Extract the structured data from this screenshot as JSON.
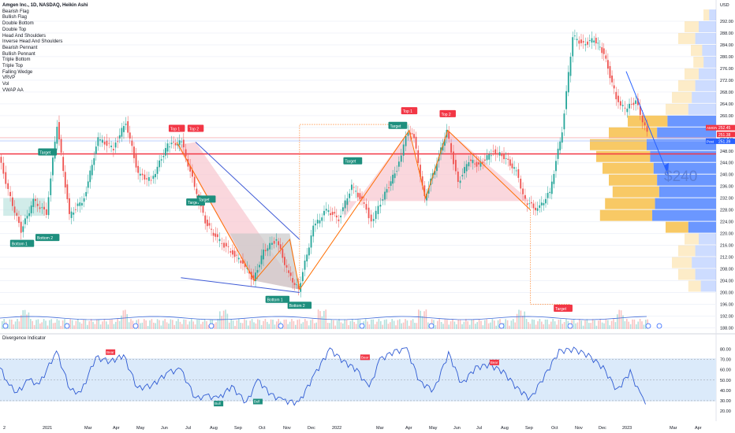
{
  "header": {
    "title": "Amgen Inc., 1D, NASDAQ, Heikin Ashi"
  },
  "indicators": [
    "Bearish Flag",
    "Bullish Flag",
    "Double Bottom",
    "Double Top",
    "Head And Shoulders",
    "Inverse Head And Shoulders",
    "Bearish Pennant",
    "Bullish Pennant",
    "Triple Bottom",
    "Triple Top",
    "Falling Wedge",
    "VRVP",
    "Vol",
    "VWAP AA"
  ],
  "divergence_title": "Divergence Indicator",
  "annotation_price": "$240",
  "colors": {
    "up": "#26a69a",
    "down": "#ef5350",
    "accent_blue": "#2962ff",
    "vp_yellow": "#f7c04a",
    "vp_blue": "#5b8cff",
    "pattern_pink": "#f8c6cf",
    "pattern_gray": "#c9c9c9",
    "trend_orange": "#ff6d00",
    "rsi_line": "#2f5bd3",
    "band_fill": "#dbeafa"
  },
  "chart_data": [
    {
      "type": "candlestick",
      "title": "Amgen Inc., 1D, NASDAQ, Heikin Ashi",
      "currency": "USD",
      "ylim": [
        186,
        296
      ],
      "y_ticks": [
        188,
        192,
        196,
        200,
        204,
        208,
        212,
        216,
        220,
        224,
        228,
        232,
        236,
        240,
        244,
        248,
        252,
        256,
        260,
        264,
        268,
        272,
        276,
        280,
        284,
        288,
        292
      ],
      "x_labels": [
        "2",
        "2021",
        "Mar",
        "Apr",
        "May",
        "Jun",
        "Jul",
        "Aug",
        "Sep",
        "Oct",
        "Nov",
        "Dec",
        "2022",
        "Mar",
        "Apr",
        "May",
        "Jun",
        "Jul",
        "Aug",
        "Sep",
        "Oct",
        "Nov",
        "Dec",
        "2023",
        "Mar",
        "Apr"
      ],
      "price_path": [
        {
          "x": "2020-12-01",
          "y": 246
        },
        {
          "x": "2020-12-15",
          "y": 232
        },
        {
          "x": "2020-12-28",
          "y": 221
        },
        {
          "x": "2021-01-12",
          "y": 231
        },
        {
          "x": "2021-01-28",
          "y": 227
        },
        {
          "x": "2021-02-10",
          "y": 257
        },
        {
          "x": "2021-02-25",
          "y": 226
        },
        {
          "x": "2021-03-15",
          "y": 232
        },
        {
          "x": "2021-04-01",
          "y": 252
        },
        {
          "x": "2021-04-20",
          "y": 249
        },
        {
          "x": "2021-05-05",
          "y": 258
        },
        {
          "x": "2021-05-20",
          "y": 240
        },
        {
          "x": "2021-06-05",
          "y": 238
        },
        {
          "x": "2021-06-25",
          "y": 250
        },
        {
          "x": "2021-07-12",
          "y": 251
        },
        {
          "x": "2021-07-28",
          "y": 236
        },
        {
          "x": "2021-08-10",
          "y": 224
        },
        {
          "x": "2021-08-25",
          "y": 218
        },
        {
          "x": "2021-09-10",
          "y": 214
        },
        {
          "x": "2021-09-25",
          "y": 210
        },
        {
          "x": "2021-10-08",
          "y": 204
        },
        {
          "x": "2021-10-20",
          "y": 214
        },
        {
          "x": "2021-11-05",
          "y": 218
        },
        {
          "x": "2021-11-20",
          "y": 206
        },
        {
          "x": "2021-12-02",
          "y": 201
        },
        {
          "x": "2021-12-20",
          "y": 222
        },
        {
          "x": "2022-01-05",
          "y": 228
        },
        {
          "x": "2022-01-20",
          "y": 225
        },
        {
          "x": "2022-02-05",
          "y": 236
        },
        {
          "x": "2022-02-20",
          "y": 230
        },
        {
          "x": "2022-03-01",
          "y": 224
        },
        {
          "x": "2022-03-15",
          "y": 232
        },
        {
          "x": "2022-04-01",
          "y": 242
        },
        {
          "x": "2022-04-15",
          "y": 255
        },
        {
          "x": "2022-04-22",
          "y": 252
        },
        {
          "x": "2022-05-05",
          "y": 232
        },
        {
          "x": "2022-05-20",
          "y": 244
        },
        {
          "x": "2022-06-01",
          "y": 255
        },
        {
          "x": "2022-06-15",
          "y": 237
        },
        {
          "x": "2022-06-28",
          "y": 245
        },
        {
          "x": "2022-07-10",
          "y": 243
        },
        {
          "x": "2022-07-28",
          "y": 248
        },
        {
          "x": "2022-08-10",
          "y": 246
        },
        {
          "x": "2022-08-25",
          "y": 241
        },
        {
          "x": "2022-09-05",
          "y": 231
        },
        {
          "x": "2022-09-20",
          "y": 228
        },
        {
          "x": "2022-10-05",
          "y": 234
        },
        {
          "x": "2022-10-20",
          "y": 255
        },
        {
          "x": "2022-11-02",
          "y": 287
        },
        {
          "x": "2022-11-15",
          "y": 284
        },
        {
          "x": "2022-11-28",
          "y": 286
        },
        {
          "x": "2022-12-10",
          "y": 281
        },
        {
          "x": "2022-12-25",
          "y": 266
        },
        {
          "x": "2023-01-05",
          "y": 262
        },
        {
          "x": "2023-01-18",
          "y": 265
        },
        {
          "x": "2023-02-01",
          "y": 254
        }
      ],
      "price_tags": [
        {
          "label": "AMGN",
          "value": "252.45"
        },
        {
          "label": "",
          "value": "251.38"
        },
        {
          "label": "Post",
          "value": "251.39"
        }
      ],
      "pattern_labels": [
        "Top 1",
        "Top 2",
        "Top 1",
        "Top 2",
        "Bottom 1",
        "Bottom 2",
        "Bottom 1",
        "Bottom 2"
      ],
      "target_labels": [
        "Target",
        "Target",
        "Target",
        "Target",
        "Target",
        "Target"
      ],
      "volume_profile": [
        {
          "price": 294,
          "value": 0.1
        },
        {
          "price": 290,
          "value": 0.25
        },
        {
          "price": 286,
          "value": 0.3
        },
        {
          "price": 282,
          "value": 0.2
        },
        {
          "price": 278,
          "value": 0.18
        },
        {
          "price": 274,
          "value": 0.25
        },
        {
          "price": 270,
          "value": 0.3
        },
        {
          "price": 266,
          "value": 0.35
        },
        {
          "price": 262,
          "value": 0.4
        },
        {
          "price": 258,
          "value": 0.7
        },
        {
          "price": 254,
          "value": 0.85
        },
        {
          "price": 250,
          "value": 1.0
        },
        {
          "price": 246,
          "value": 0.95
        },
        {
          "price": 242,
          "value": 0.9
        },
        {
          "price": 238,
          "value": 0.85
        },
        {
          "price": 234,
          "value": 0.82
        },
        {
          "price": 230,
          "value": 0.88
        },
        {
          "price": 226,
          "value": 0.92
        },
        {
          "price": 222,
          "value": 0.4
        },
        {
          "price": 218,
          "value": 0.25
        },
        {
          "price": 214,
          "value": 0.3
        },
        {
          "price": 210,
          "value": 0.35
        },
        {
          "price": 206,
          "value": 0.3
        },
        {
          "price": 202,
          "value": 0.22
        }
      ]
    },
    {
      "type": "line",
      "title": "Divergence Indicator",
      "ylim": [
        20,
        85
      ],
      "y_ticks": [
        20,
        30,
        40,
        50,
        60,
        70,
        80
      ],
      "band": [
        30,
        70
      ],
      "series": [
        {
          "values": [
            {
              "x": "2020-12-01",
              "y": 62
            },
            {
              "x": "2020-12-12",
              "y": 45
            },
            {
              "x": "2020-12-22",
              "y": 38
            },
            {
              "x": "2021-01-05",
              "y": 50
            },
            {
              "x": "2021-01-18",
              "y": 46
            },
            {
              "x": "2021-02-08",
              "y": 78
            },
            {
              "x": "2021-02-25",
              "y": 40
            },
            {
              "x": "2021-03-10",
              "y": 38
            },
            {
              "x": "2021-03-28",
              "y": 72
            },
            {
              "x": "2021-04-15",
              "y": 68
            },
            {
              "x": "2021-05-01",
              "y": 74
            },
            {
              "x": "2021-05-18",
              "y": 42
            },
            {
              "x": "2021-06-05",
              "y": 45
            },
            {
              "x": "2021-06-25",
              "y": 58
            },
            {
              "x": "2021-07-10",
              "y": 60
            },
            {
              "x": "2021-07-28",
              "y": 32
            },
            {
              "x": "2021-08-10",
              "y": 35
            },
            {
              "x": "2021-08-25",
              "y": 32
            },
            {
              "x": "2021-09-10",
              "y": 44
            },
            {
              "x": "2021-09-28",
              "y": 28
            },
            {
              "x": "2021-10-12",
              "y": 50
            },
            {
              "x": "2021-10-28",
              "y": 36
            },
            {
              "x": "2021-11-12",
              "y": 30
            },
            {
              "x": "2021-12-01",
              "y": 28
            },
            {
              "x": "2021-12-20",
              "y": 55
            },
            {
              "x": "2022-01-08",
              "y": 80
            },
            {
              "x": "2022-01-25",
              "y": 68
            },
            {
              "x": "2022-02-10",
              "y": 60
            },
            {
              "x": "2022-02-25",
              "y": 42
            },
            {
              "x": "2022-03-10",
              "y": 70
            },
            {
              "x": "2022-03-28",
              "y": 78
            },
            {
              "x": "2022-04-12",
              "y": 80
            },
            {
              "x": "2022-04-28",
              "y": 48
            },
            {
              "x": "2022-05-15",
              "y": 40
            },
            {
              "x": "2022-06-02",
              "y": 76
            },
            {
              "x": "2022-06-18",
              "y": 46
            },
            {
              "x": "2022-07-05",
              "y": 62
            },
            {
              "x": "2022-07-22",
              "y": 65
            },
            {
              "x": "2022-08-08",
              "y": 58
            },
            {
              "x": "2022-08-25",
              "y": 42
            },
            {
              "x": "2022-09-10",
              "y": 32
            },
            {
              "x": "2022-09-28",
              "y": 55
            },
            {
              "x": "2022-10-15",
              "y": 78
            },
            {
              "x": "2022-11-02",
              "y": 80
            },
            {
              "x": "2022-11-20",
              "y": 74
            },
            {
              "x": "2022-12-08",
              "y": 62
            },
            {
              "x": "2022-12-25",
              "y": 40
            },
            {
              "x": "2023-01-10",
              "y": 58
            },
            {
              "x": "2023-01-22",
              "y": 36
            },
            {
              "x": "2023-02-01",
              "y": 26
            }
          ]
        }
      ],
      "signal_labels": [
        "Bear",
        "Bear",
        "Bear",
        "Bull",
        "Bull"
      ]
    }
  ]
}
